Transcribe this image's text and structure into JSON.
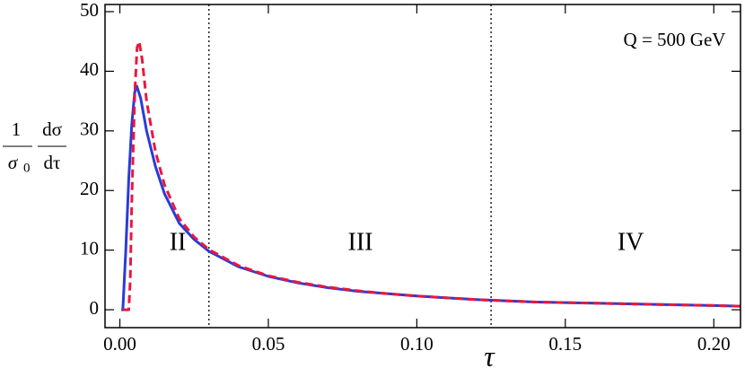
{
  "chart_data": {
    "type": "line",
    "x_label": "τ",
    "y_label": {
      "fraction_1": {
        "numerator": "1",
        "denominator": "σ",
        "denominator_subscript": "0"
      },
      "fraction_2": {
        "numerator": "dσ",
        "denominator": "dτ"
      }
    },
    "annotations": [
      "II",
      "III",
      "IV",
      "Q = 500 GeV"
    ],
    "xlim": [
      -0.005,
      0.209
    ],
    "ylim": [
      -3,
      51.2
    ],
    "xticks": [
      {
        "value": 0,
        "label": "0.00"
      },
      {
        "value": 0.05,
        "label": "0.05"
      },
      {
        "value": 0.1,
        "label": "0.10"
      },
      {
        "value": 0.15,
        "label": "0.15"
      },
      {
        "value": 0.2,
        "label": "0.20"
      }
    ],
    "yticks": [
      0,
      10,
      20,
      30,
      40,
      50
    ],
    "vlines": [
      0.03,
      0.125
    ],
    "series": [
      {
        "color": "#2b3bd8",
        "style": "solid",
        "x": [
          0.0005,
          0.001,
          0.002,
          0.003,
          0.004,
          0.005,
          0.0057,
          0.007,
          0.009,
          0.012,
          0.015,
          0.02,
          0.025,
          0.03,
          0.04,
          0.05,
          0.06,
          0.07,
          0.08,
          0.09,
          0.1,
          0.12,
          0.14,
          0.16,
          0.18,
          0.2,
          0.209
        ],
        "y": [
          0,
          0,
          10,
          22,
          31,
          36.5,
          37.5,
          35.5,
          30,
          24,
          19.5,
          14.5,
          11.8,
          9.8,
          7.2,
          5.6,
          4.5,
          3.7,
          3.1,
          2.7,
          2.3,
          1.7,
          1.3,
          1.1,
          0.9,
          0.7,
          0.6
        ]
      },
      {
        "color": "#e8193c",
        "style": "dashed",
        "x": [
          0.001,
          0.003,
          0.0035,
          0.004,
          0.005,
          0.0058,
          0.0065,
          0.0075,
          0.009,
          0.012,
          0.015,
          0.02,
          0.025,
          0.03,
          0.04,
          0.05,
          0.06,
          0.07,
          0.08,
          0.09,
          0.1,
          0.12,
          0.14,
          0.16,
          0.18,
          0.2,
          0.209
        ],
        "y": [
          0,
          0,
          5,
          18,
          36,
          44,
          45,
          42,
          35,
          26.5,
          21,
          15.3,
          12.2,
          10.1,
          7.4,
          5.7,
          4.6,
          3.8,
          3.2,
          2.7,
          2.3,
          1.7,
          1.3,
          1.1,
          0.9,
          0.7,
          0.6
        ]
      }
    ]
  }
}
